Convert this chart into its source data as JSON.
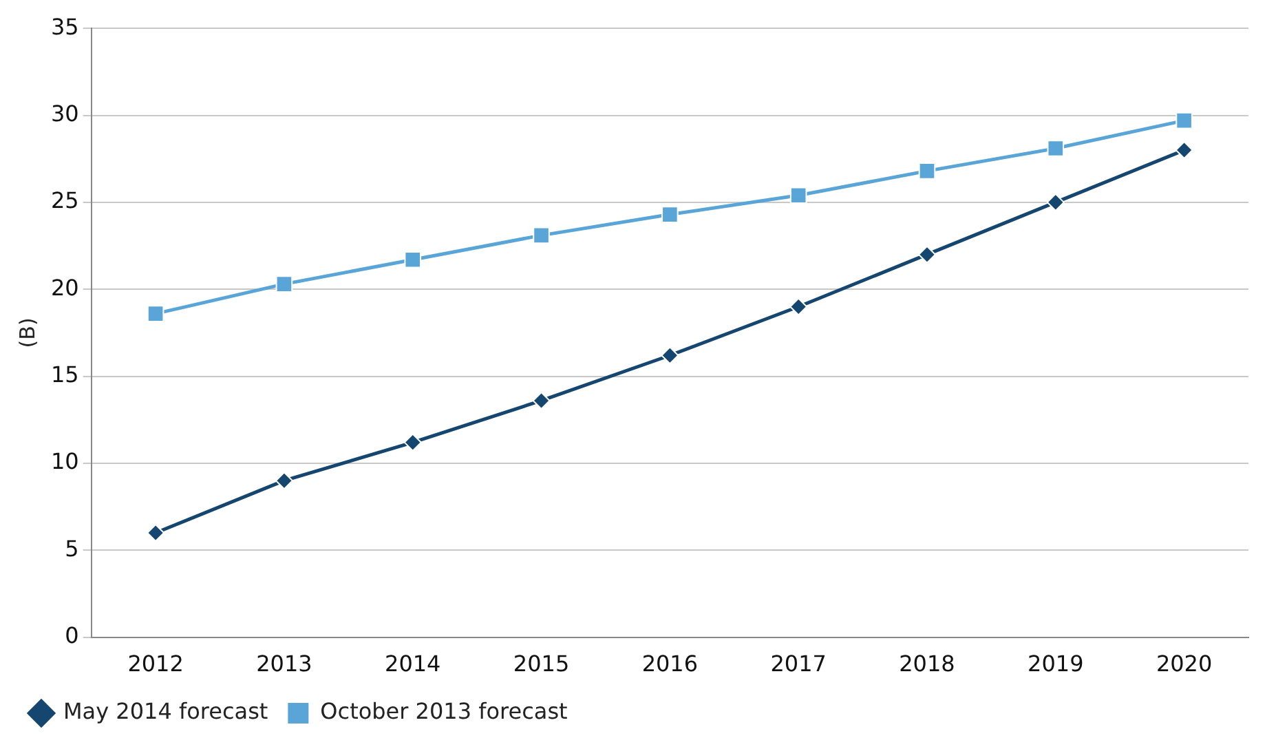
{
  "chart_data": {
    "type": "line",
    "ylabel": "(B)",
    "categories": [
      "2012",
      "2013",
      "2014",
      "2015",
      "2016",
      "2017",
      "2018",
      "2019",
      "2020"
    ],
    "series": [
      {
        "name": "May 2014 forecast",
        "color": "#15466f",
        "marker": "diamond",
        "values": [
          6,
          9,
          11.2,
          13.6,
          16.2,
          19,
          22,
          25,
          28
        ]
      },
      {
        "name": "October 2013 forecast",
        "color": "#5aa5d8",
        "marker": "square",
        "values": [
          18.6,
          20.3,
          21.7,
          23.1,
          24.3,
          25.4,
          26.8,
          28.1,
          29.7
        ]
      }
    ],
    "ylim": [
      0,
      35
    ],
    "yticks": [
      0,
      5,
      10,
      15,
      20,
      25,
      30,
      35
    ],
    "grid": "y",
    "legend": "bottom left",
    "line_style": "solid"
  }
}
